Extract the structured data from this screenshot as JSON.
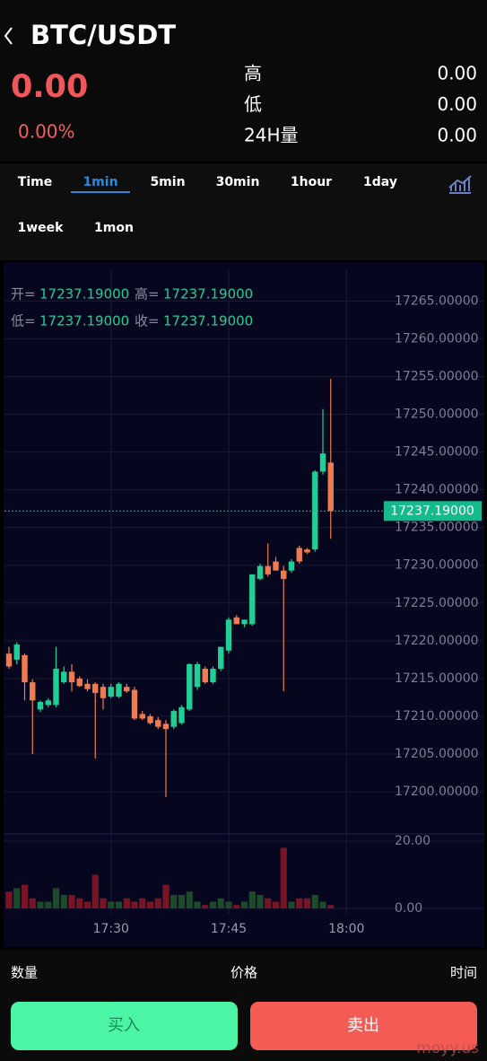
{
  "header": {
    "title": "BTC/USDT",
    "price": "0.00",
    "change": "0.00%",
    "stats": [
      {
        "label": "高",
        "value": "0.00"
      },
      {
        "label": "低",
        "value": "0.00"
      },
      {
        "label": "24H量",
        "value": "0.00"
      }
    ]
  },
  "tabs": {
    "items": [
      "Time",
      "1min",
      "5min",
      "30min",
      "1hour",
      "1day",
      "1week",
      "1mon"
    ],
    "active": 1
  },
  "chart_data": {
    "type": "candlestick",
    "info": [
      {
        "key": "开=",
        "value": "17237.19000"
      },
      {
        "key": "高=",
        "value": "17237.19000"
      },
      {
        "key": "低=",
        "value": "17237.19000"
      },
      {
        "key": "收=",
        "value": "17237.19000"
      }
    ],
    "open": [
      17218.3,
      17217.5,
      17218.1,
      17214.5,
      17210.9,
      17211.5,
      17211.5,
      17214.5,
      17215.9,
      17215.0,
      17214.3,
      17214.3,
      17213.9,
      17212.6,
      17212.6,
      17213.9,
      17213.5,
      17210.3,
      17210.0,
      17209.5,
      17209.0,
      17208.6,
      17209.1,
      17210.9,
      17213.9,
      17216.3,
      17214.5,
      17216.3,
      17218.7,
      17223.1,
      17222.2,
      17222.2,
      17228.2,
      17229.9,
      17230.5,
      17229.3,
      17229.3,
      17232.3,
      17232.1,
      17232.1,
      17242.4,
      17243.6
    ],
    "high": [
      17219.2,
      17219.8,
      17218.3,
      17214.9,
      17212.1,
      17212.4,
      17219.2,
      17216.6,
      17216.9,
      17215.3,
      17214.9,
      17214.5,
      17214.3,
      17214.3,
      17214.5,
      17214.3,
      17213.9,
      17210.7,
      17210.3,
      17209.9,
      17209.5,
      17210.9,
      17211.5,
      17217.0,
      17217.2,
      17216.6,
      17216.6,
      17219.2,
      17223.1,
      17223.4,
      17222.8,
      17228.8,
      17230.2,
      17232.9,
      17231.1,
      17229.9,
      17230.8,
      17232.6,
      17232.3,
      17242.6,
      17250.7,
      17254.7
    ],
    "low": [
      17216.3,
      17216.9,
      17212.1,
      17205.0,
      17210.6,
      17211.2,
      17211.2,
      17214.3,
      17213.3,
      17213.9,
      17213.3,
      17204.4,
      17210.9,
      17212.4,
      17212.4,
      17213.1,
      17209.5,
      17209.5,
      17208.9,
      17208.3,
      17199.3,
      17208.3,
      17208.9,
      17210.7,
      17213.5,
      17214.3,
      17214.3,
      17216.0,
      17218.3,
      17222.2,
      17221.8,
      17222.0,
      17228.0,
      17228.5,
      17230.0,
      17213.3,
      17229.0,
      17230.2,
      17231.5,
      17231.8,
      17242.0,
      17233.5
    ],
    "close": [
      17216.6,
      17219.5,
      17214.5,
      17212.1,
      17211.9,
      17212.1,
      17216.3,
      17215.9,
      17214.5,
      17214.0,
      17213.6,
      17213.1,
      17212.4,
      17213.9,
      17214.3,
      17213.3,
      17209.7,
      17209.7,
      17209.1,
      17208.6,
      17208.3,
      17210.7,
      17211.2,
      17216.9,
      17216.9,
      17214.5,
      17216.3,
      17219.2,
      17222.8,
      17222.2,
      17222.8,
      17228.8,
      17229.9,
      17228.8,
      17229.3,
      17228.2,
      17230.5,
      17230.5,
      17231.7,
      17242.4,
      17244.8,
      17237.19
    ],
    "volumes": [
      5,
      6,
      7,
      3,
      2,
      2,
      6,
      4,
      4,
      3,
      2,
      10,
      3,
      2,
      2,
      3,
      2,
      3,
      2,
      3,
      7,
      4,
      4,
      5,
      2,
      1,
      2,
      3,
      2,
      1,
      2,
      5,
      4,
      3,
      2,
      18,
      2,
      3,
      3,
      4,
      2,
      1
    ],
    "ylim": [
      17194.9,
      17269.2
    ],
    "yticks": [
      {
        "value": 17200,
        "label": "17200.00000"
      },
      {
        "value": 17205,
        "label": "17205.00000"
      },
      {
        "value": 17210,
        "label": "17210.00000"
      },
      {
        "value": 17215,
        "label": "17215.00000"
      },
      {
        "value": 17220,
        "label": "17220.00000"
      },
      {
        "value": 17225,
        "label": "17225.00000"
      },
      {
        "value": 17230,
        "label": "17230.00000"
      },
      {
        "value": 17235,
        "label": "17235.00000"
      },
      {
        "value": 17240,
        "label": "17240.00000"
      },
      {
        "value": 17245,
        "label": "17245.00000"
      },
      {
        "value": 17250,
        "label": "17250.00000"
      },
      {
        "value": 17255,
        "label": "17255.00000"
      },
      {
        "value": 17260,
        "label": "17260.00000"
      },
      {
        "value": 17265,
        "label": "17265.00000"
      }
    ],
    "vlim": [
      0,
      20
    ],
    "vticks": [
      {
        "value": 0,
        "label": "0.00"
      },
      {
        "value": 20,
        "label": "20.00"
      }
    ],
    "xticks": [
      {
        "value": 13,
        "label": "17:30"
      },
      {
        "value": 28,
        "label": "17:45"
      },
      {
        "value": 43,
        "label": "18:00"
      }
    ],
    "last_price": {
      "value": 17237.19,
      "label": "17237.19000"
    },
    "up_color": "#1fcf95",
    "down_color": "#ef7b51",
    "grid": true
  },
  "trade_headers": [
    "数量",
    "价格",
    "时间"
  ],
  "buttons": [
    "买入",
    "卖出"
  ],
  "watermark": "moyy.us"
}
